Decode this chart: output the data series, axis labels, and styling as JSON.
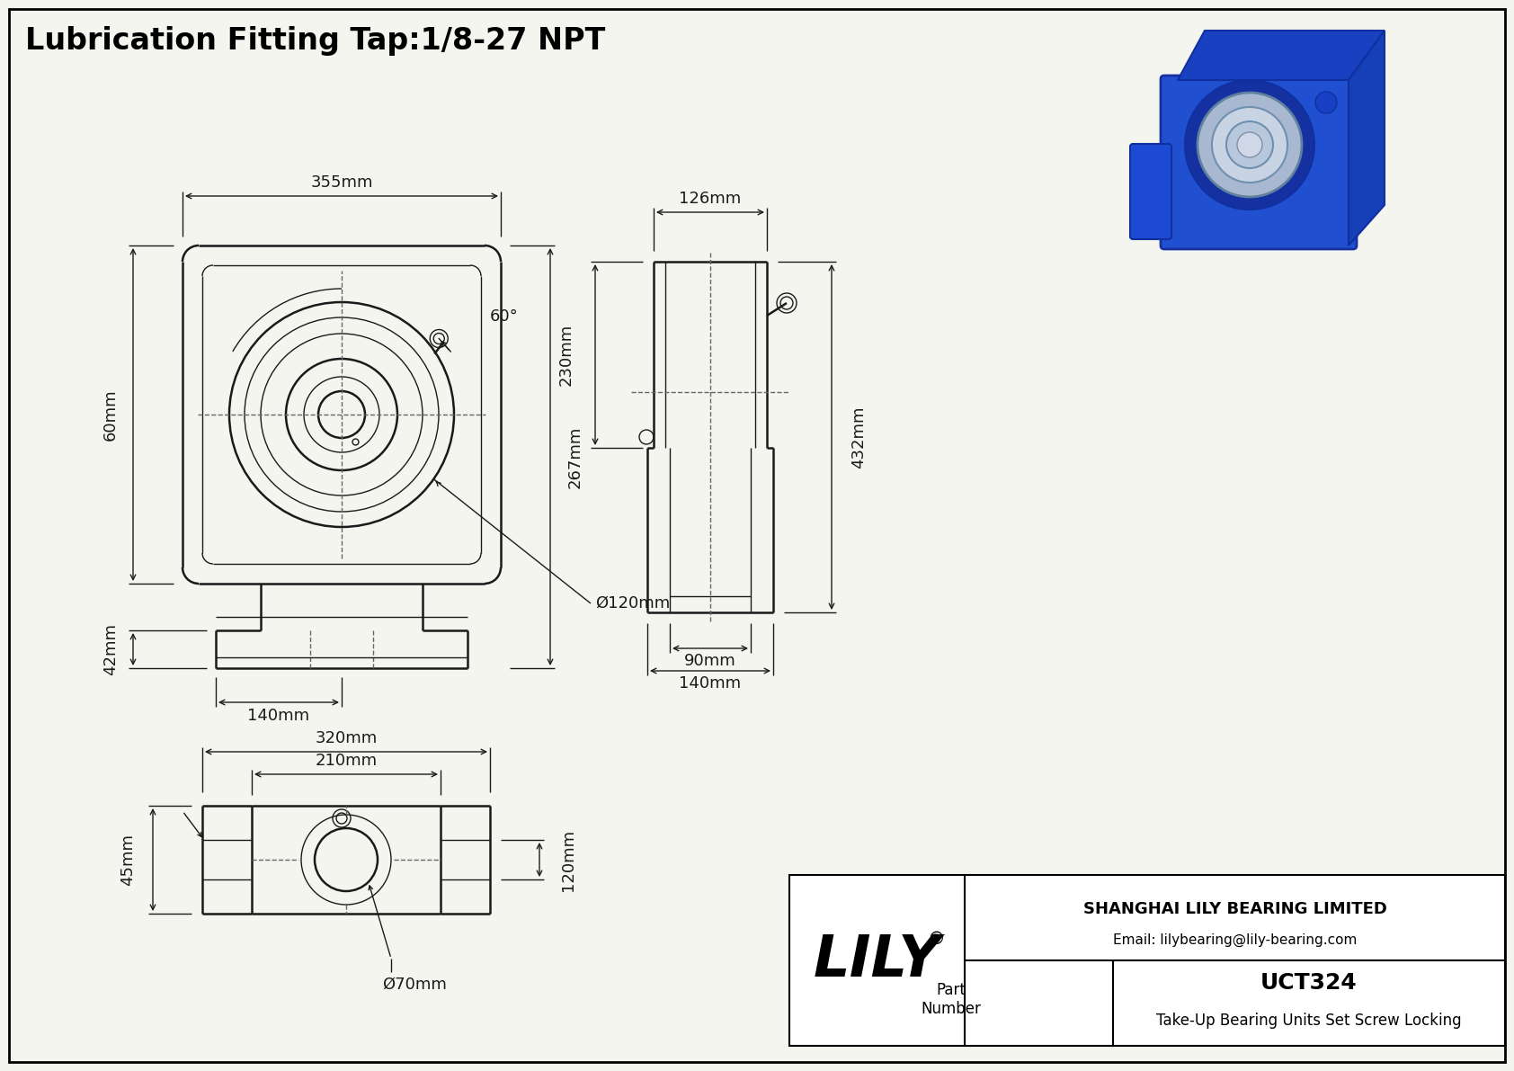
{
  "title": "Lubrication Fitting Tap:1/8-27 NPT",
  "bg_color": "#f5f5f0",
  "line_color": "#1a1a1a",
  "dim_color": "#1a1a1a",
  "title_fontsize": 24,
  "dim_fontsize": 13,
  "title_box": {
    "lily_text": "LILY",
    "lily_reg": "®",
    "company": "SHANGHAI LILY BEARING LIMITED",
    "email": "Email: lilybearing@lily-bearing.com",
    "part_label": "Part\nNumber",
    "part_number": "UCT324",
    "part_desc": "Take-Up Bearing Units Set Screw Locking"
  }
}
